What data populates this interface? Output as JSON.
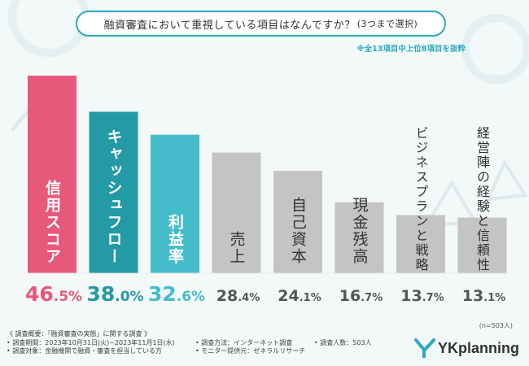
{
  "title": {
    "main": "融資審査において重視している項目はなんですか？",
    "sub": "(3つまで選択)"
  },
  "note": "※全13項目中上位8項目を抜粋",
  "chart_data": {
    "type": "bar",
    "categories": [
      "信用スコア",
      "キャッシュフロー",
      "利益率",
      "売上",
      "自己資本",
      "現金残高",
      "ビジネスプランと戦略",
      "経営陣の経験と信頼性"
    ],
    "values": [
      46.5,
      38.0,
      32.6,
      28.4,
      24.1,
      16.7,
      13.7,
      13.1
    ],
    "value_labels": [
      {
        "int": "46",
        "dec": ".5",
        "unit": "%"
      },
      {
        "int": "38",
        "dec": ".0",
        "unit": "%"
      },
      {
        "int": "32",
        "dec": ".6",
        "unit": "%"
      },
      {
        "int": "28",
        "dec": ".4",
        "unit": "%"
      },
      {
        "int": "24",
        "dec": ".1",
        "unit": "%"
      },
      {
        "int": "16",
        "dec": ".7",
        "unit": "%"
      },
      {
        "int": "13",
        "dec": ".7",
        "unit": "%"
      },
      {
        "int": "13",
        "dec": ".1",
        "unit": "%"
      }
    ],
    "colors": [
      "#e8587a",
      "#239aa6",
      "#45bccb",
      "#c4c4c4",
      "#c4c4c4",
      "#c4c4c4",
      "#c4c4c4",
      "#c4c4c4"
    ],
    "label_colors": [
      "#e8587a",
      "#239aa6",
      "#45bccb",
      "#555555",
      "#555555",
      "#555555",
      "#555555",
      "#555555"
    ],
    "ylim": [
      0,
      50
    ],
    "grid": false,
    "legend": "none"
  },
  "sample_note": "(n=503人)",
  "footer": {
    "overview": "《 調査概要：「融資審査の実態」に関する調査 》",
    "period": "• 調査期間：2023年10月31日(火)~2023年11月1日(水)",
    "target": "• 調査対象：金融機関で融資・審査を担当している方",
    "method": "• 調査方法：インターネット調査",
    "provider": "• モニター提供元：ゼネラルリサーチ",
    "count": "• 調査人数：503人"
  },
  "logo": {
    "text": "YKplanning",
    "mark_color": "#2ca9bf"
  }
}
